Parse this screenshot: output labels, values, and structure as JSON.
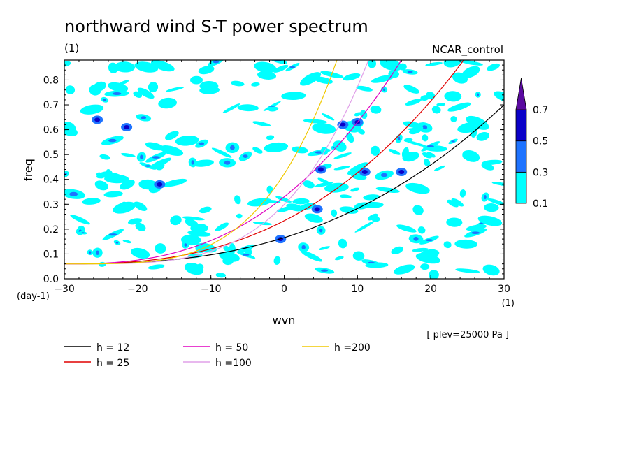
{
  "chart_data": {
    "type": "contour",
    "title": "northward wind S-T power spectrum",
    "subtitle_left": "(1)",
    "subtitle_right": "NCAR_control",
    "xlabel": "wvn",
    "ylabel": "freq",
    "x_unit": "(1)",
    "y_unit": "(day-1)",
    "note": "[ plev=25000 Pa ]",
    "xlim": [
      -30,
      30
    ],
    "ylim": [
      0,
      0.88
    ],
    "x_ticks": [
      "-30",
      "-20",
      "-10",
      "0",
      "10",
      "20",
      "30"
    ],
    "y_ticks": [
      "0.0",
      "0.1",
      "0.2",
      "0.3",
      "0.4",
      "0.5",
      "0.6",
      "0.7",
      "0.8"
    ],
    "colorbar": {
      "levels": [
        "0.1",
        "0.3",
        "0.5",
        "0.7"
      ],
      "colors": [
        "#00ffff",
        "#1e73ff",
        "#0a00c8",
        "#5a0aa0"
      ]
    },
    "dispersion_curves": [
      {
        "name": "h = 12",
        "h": 12,
        "color": "#000000"
      },
      {
        "name": "h = 25",
        "h": 25,
        "color": "#e00000"
      },
      {
        "name": "h = 50",
        "h": 50,
        "color": "#e000c0"
      },
      {
        "name": "h =100",
        "h": 100,
        "color": "#e0a0e8"
      },
      {
        "name": "h =200",
        "h": 200,
        "color": "#f0c800"
      }
    ],
    "grid": false,
    "legend_position": "bottom-left"
  }
}
